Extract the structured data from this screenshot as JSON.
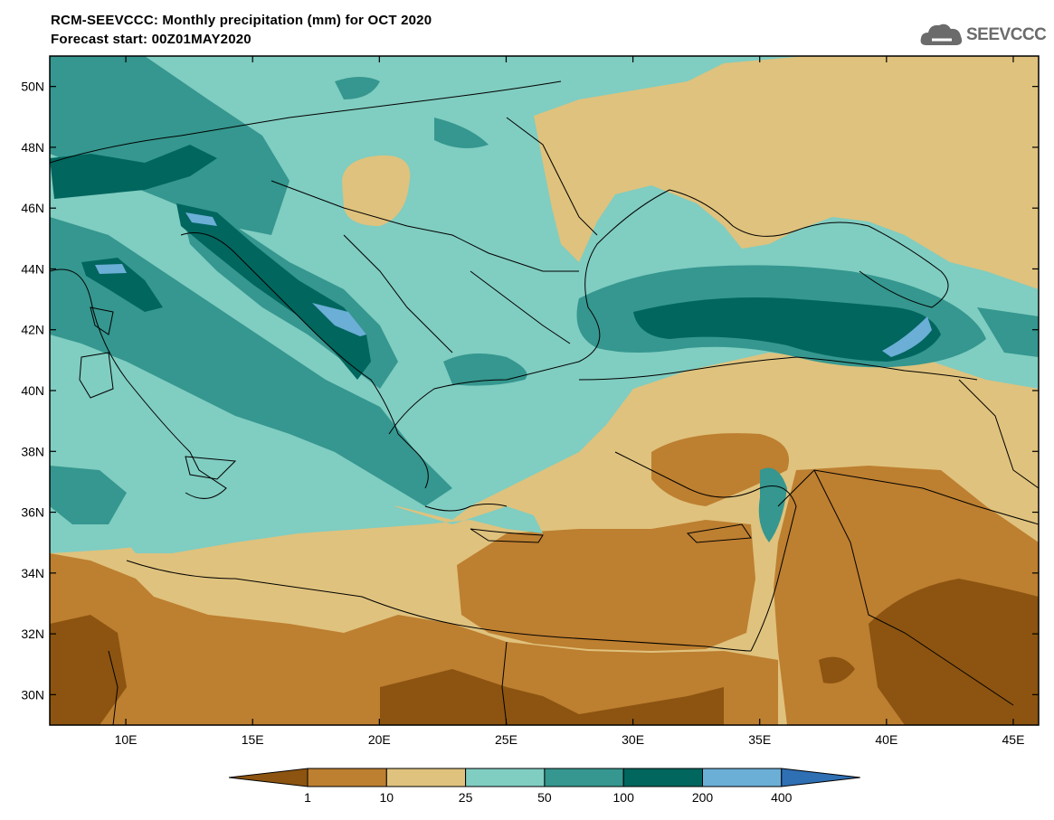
{
  "title_line1": "RCM-SEEVCCC: Monthly precipitation (mm) for OCT 2020",
  "title_line2": "Forecast start: 00Z01MAY2020",
  "logo_text": "SEEVCCC",
  "map": {
    "lon_range": [
      7,
      46
    ],
    "lat_range": [
      29,
      51
    ],
    "lat_ticks": [
      "30N",
      "32N",
      "34N",
      "36N",
      "38N",
      "40N",
      "42N",
      "44N",
      "46N",
      "48N",
      "50N"
    ],
    "lon_ticks": [
      "10E",
      "15E",
      "20E",
      "25E",
      "30E",
      "35E",
      "40E",
      "45E"
    ]
  },
  "colorbar": {
    "thresholds": [
      "1",
      "10",
      "25",
      "50",
      "100",
      "200",
      "400"
    ],
    "colors": {
      "below_1": "#8c5410",
      "c1_10": "#bd7f30",
      "c10_25": "#dfc27d",
      "c25_50": "#80cdc1",
      "c50_100": "#35978f",
      "c100_200": "#01665e",
      "c200_400": "#6baed6",
      "above_400": "#2f6fb3"
    }
  }
}
